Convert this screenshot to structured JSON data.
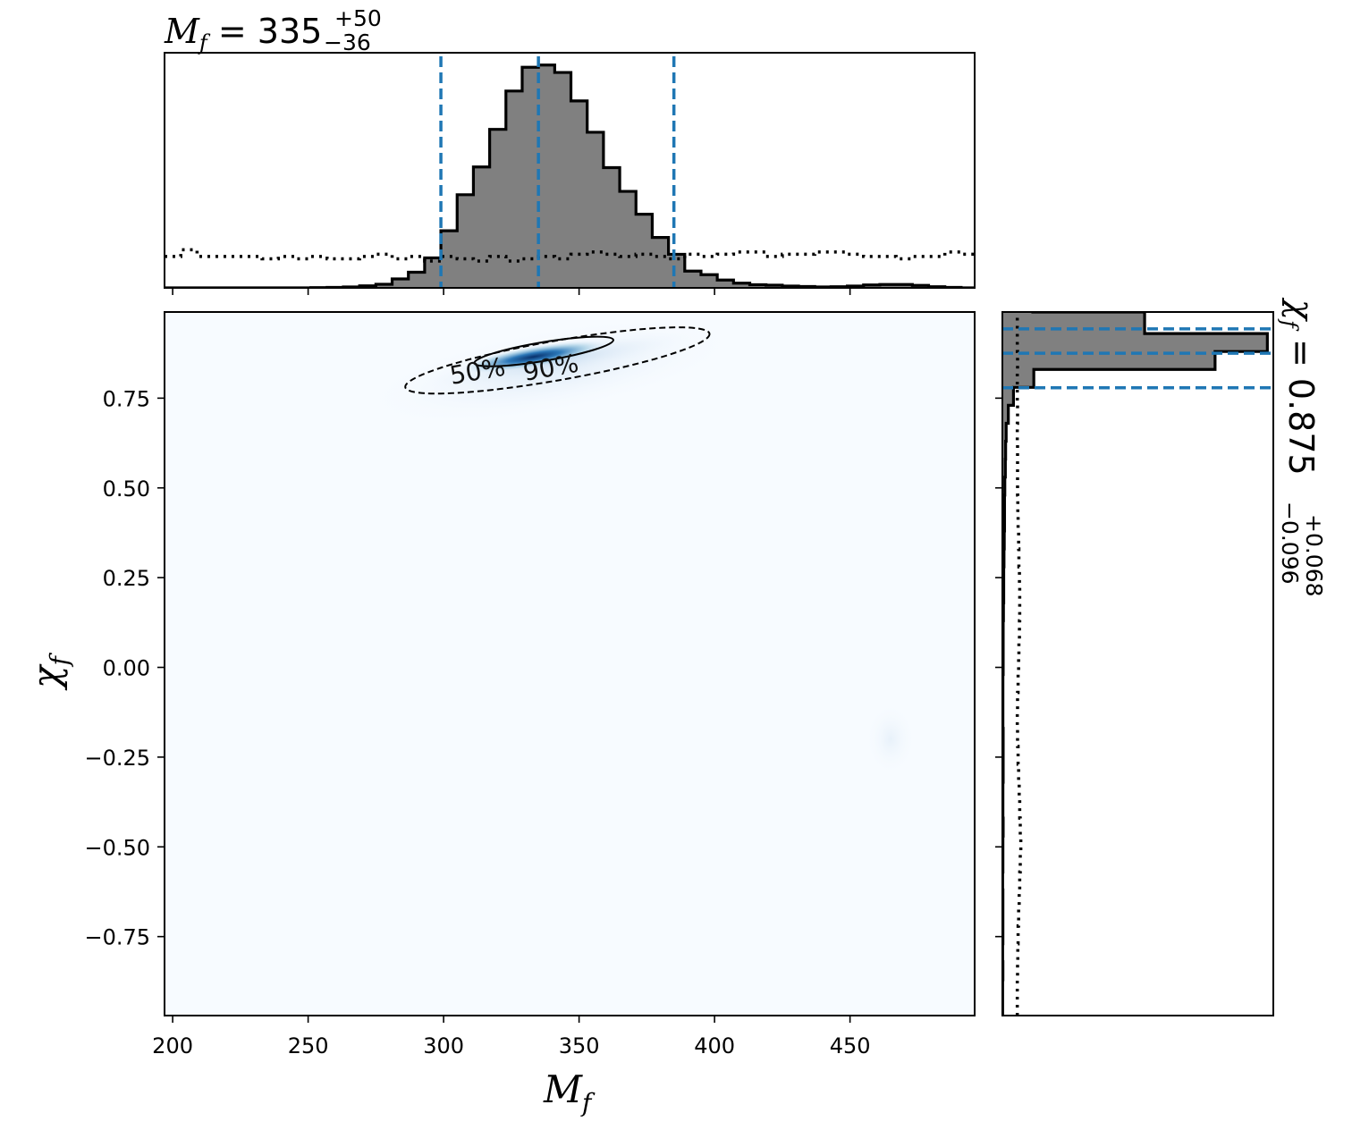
{
  "chart_data": {
    "type": "corner",
    "x_param": {
      "axis_label": "M",
      "axis_label_sub": "f",
      "summary_prefix": "M",
      "summary_sub": "f",
      "summary_eq": " = 335",
      "summary_plus": "+50",
      "summary_minus": "−36",
      "median": 335,
      "lower": 299,
      "upper": 385,
      "xlim": [
        197,
        496
      ],
      "ticks": [
        200,
        250,
        300,
        350,
        400,
        450
      ],
      "tick_labels": [
        "200",
        "250",
        "300",
        "350",
        "400",
        "450"
      ]
    },
    "y_param": {
      "axis_label": "χ",
      "axis_label_sub": "f",
      "summary_prefix": "χ",
      "summary_sub": "f",
      "summary_eq": " = 0.875",
      "summary_plus": "+0.068",
      "summary_minus": "−0.096",
      "median": 0.875,
      "lower": 0.779,
      "upper": 0.943,
      "ylim": [
        -0.97,
        0.99
      ],
      "ticks": [
        0.75,
        0.5,
        0.25,
        0.0,
        -0.25,
        -0.5,
        -0.75
      ],
      "tick_labels": [
        "0.75",
        "0.50",
        "0.25",
        "0.00",
        "−0.25",
        "−0.50",
        "−0.75"
      ]
    },
    "top_histogram": {
      "type": "histogram",
      "bin_edges": [
        197,
        203,
        209,
        215,
        221,
        227,
        233,
        239,
        245,
        251,
        257,
        263,
        269,
        275,
        281,
        287,
        293,
        299,
        305,
        311,
        317,
        323,
        329,
        335,
        341,
        347,
        353,
        359,
        365,
        371,
        377,
        383,
        389,
        395,
        401,
        407,
        413,
        419,
        425,
        431,
        437,
        443,
        449,
        455,
        461,
        467,
        473,
        479,
        485,
        491,
        497
      ],
      "posterior": [
        0.0,
        0.0,
        0.0,
        0.0,
        0.0,
        0.0,
        0.0,
        0.0,
        0.0,
        0.001,
        0.002,
        0.004,
        0.009,
        0.016,
        0.04,
        0.07,
        0.134,
        0.255,
        0.416,
        0.54,
        0.708,
        0.879,
        0.985,
        0.995,
        0.962,
        0.835,
        0.695,
        0.537,
        0.431,
        0.329,
        0.225,
        0.15,
        0.075,
        0.059,
        0.035,
        0.021,
        0.014,
        0.012,
        0.008,
        0.006,
        0.004,
        0.005,
        0.008,
        0.013,
        0.015,
        0.015,
        0.011,
        0.005,
        0.002,
        0.0
      ],
      "prior": [
        0.14,
        0.17,
        0.14,
        0.14,
        0.14,
        0.14,
        0.13,
        0.14,
        0.13,
        0.14,
        0.13,
        0.13,
        0.14,
        0.15,
        0.13,
        0.14,
        0.12,
        0.14,
        0.13,
        0.12,
        0.14,
        0.12,
        0.13,
        0.14,
        0.13,
        0.15,
        0.16,
        0.15,
        0.14,
        0.15,
        0.14,
        0.13,
        0.15,
        0.14,
        0.15,
        0.16,
        0.16,
        0.14,
        0.15,
        0.15,
        0.16,
        0.16,
        0.15,
        0.14,
        0.14,
        0.13,
        0.14,
        0.14,
        0.16,
        0.15
      ],
      "ymax": 1.05
    },
    "right_histogram": {
      "type": "histogram",
      "orientation": "horizontal",
      "bin_edges": [
        -0.97,
        -0.92,
        -0.87,
        -0.82,
        -0.77,
        -0.72,
        -0.67,
        -0.62,
        -0.57,
        -0.52,
        -0.47,
        -0.42,
        -0.37,
        -0.32,
        -0.27,
        -0.22,
        -0.17,
        -0.12,
        -0.07,
        -0.02,
        0.03,
        0.08,
        0.13,
        0.18,
        0.23,
        0.28,
        0.33,
        0.38,
        0.43,
        0.48,
        0.53,
        0.58,
        0.63,
        0.68,
        0.73,
        0.78,
        0.83,
        0.88,
        0.93,
        0.99
      ],
      "posterior": [
        0.001,
        0.001,
        0.002,
        0.001,
        0.002,
        0.002,
        0.002,
        0.001,
        0.002,
        0.002,
        0.003,
        0.002,
        0.002,
        0.003,
        0.003,
        0.003,
        0.002,
        0.002,
        0.002,
        0.003,
        0.003,
        0.003,
        0.004,
        0.005,
        0.005,
        0.006,
        0.007,
        0.008,
        0.008,
        0.009,
        0.011,
        0.012,
        0.014,
        0.022,
        0.041,
        0.116,
        0.785,
        0.978,
        0.525,
        0.107
      ],
      "prior": [
        0.055,
        0.055,
        0.056,
        0.057,
        0.058,
        0.06,
        0.062,
        0.064,
        0.066,
        0.068,
        0.066,
        0.064,
        0.062,
        0.06,
        0.058,
        0.056,
        0.055,
        0.056,
        0.058,
        0.06,
        0.061,
        0.063,
        0.064,
        0.064,
        0.063,
        0.061,
        0.06,
        0.058,
        0.057,
        0.056,
        0.056,
        0.056,
        0.055,
        0.056,
        0.055,
        0.055,
        0.056,
        0.055,
        0.055,
        0.055
      ],
      "xmax": 1.0
    },
    "joint": {
      "type": "heatmap",
      "colormap": "Blues",
      "peak": [
        335,
        0.875
      ],
      "contour_levels": [
        "50%",
        "90%"
      ],
      "contour_50": {
        "center": [
          337,
          0.88
        ],
        "semi_axis_x": 26,
        "semi_axis_y": 0.026,
        "angle_deg": -9.5
      },
      "contour_90": {
        "center": [
          342,
          0.855
        ],
        "semi_axis_x": 57,
        "semi_axis_y": 0.055,
        "angle_deg": -10
      }
    },
    "colors": {
      "hist_fill": "#808080",
      "hist_line": "#000000",
      "quantile_line": "#1f77b4",
      "heat_low": "#f7fbff",
      "heat_high": "#08306b"
    }
  }
}
